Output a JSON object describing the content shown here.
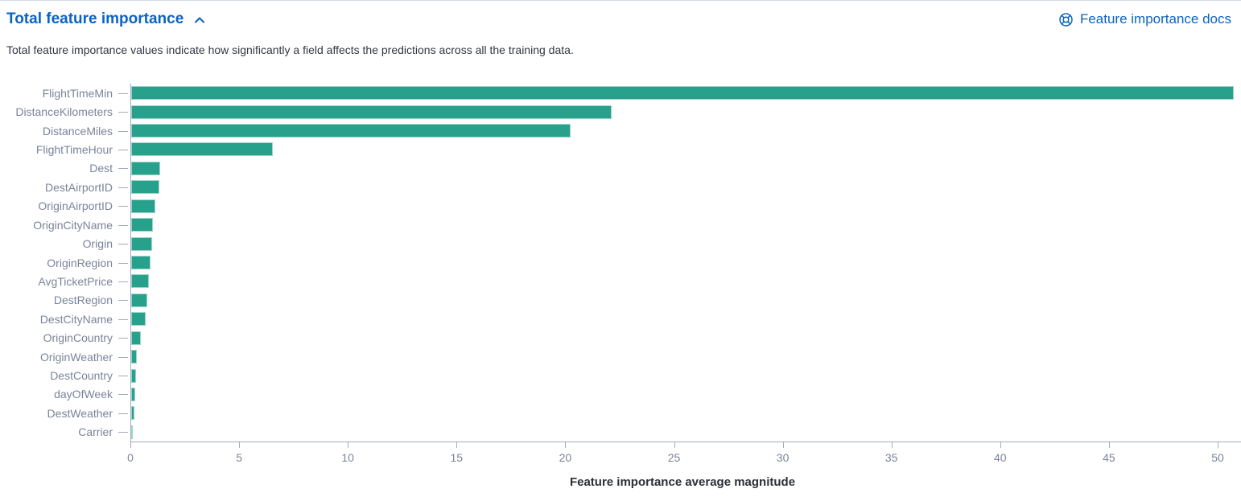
{
  "colors": {
    "accent_blue": "#0B63C2",
    "bar_teal": "#27A08C",
    "axis_line": "#A3ACBC",
    "tick_label_gray": "#7A8499",
    "text_dark": "#343741"
  },
  "header": {
    "title": "Total feature importance",
    "collapse_icon": "chevron-up-icon",
    "docs_icon": "help-lifering-icon",
    "docs_link_label": "Feature importance docs",
    "description": "Total feature importance values indicate how significantly a field affects the predictions across all the training data."
  },
  "chart_data": {
    "type": "bar",
    "orientation": "horizontal",
    "title": "",
    "xlabel": "Feature importance average magnitude",
    "ylabel": "",
    "xlim": [
      0,
      50
    ],
    "xticks": [
      0,
      5,
      10,
      15,
      20,
      25,
      30,
      35,
      40,
      45,
      50
    ],
    "grid": false,
    "legend_position": "none",
    "bar_color": "#27A08C",
    "categories": [
      "FlightTimeMin",
      "DistanceKilometers",
      "DistanceMiles",
      "FlightTimeHour",
      "Dest",
      "DestAirportID",
      "OriginAirportID",
      "OriginCityName",
      "Origin",
      "OriginRegion",
      "AvgTicketPrice",
      "DestRegion",
      "DestCityName",
      "OriginCountry",
      "OriginWeather",
      "DestCountry",
      "dayOfWeek",
      "DestWeather",
      "Carrier"
    ],
    "values": [
      50.7,
      22.1,
      20.2,
      6.5,
      1.35,
      1.3,
      1.1,
      1.0,
      0.97,
      0.9,
      0.82,
      0.75,
      0.65,
      0.45,
      0.25,
      0.22,
      0.18,
      0.14,
      0.08
    ]
  }
}
